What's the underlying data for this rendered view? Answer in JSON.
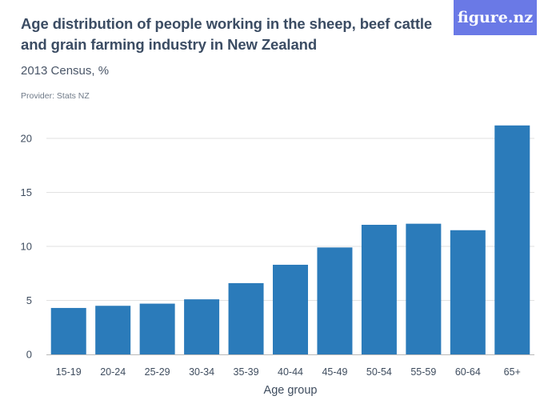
{
  "header": {
    "title": "Age distribution of people working in the sheep, beef cattle and grain farming industry in New Zealand",
    "subtitle": "2013 Census, %",
    "provider": "Provider: Stats NZ",
    "logo_text": "figure.nz"
  },
  "colors": {
    "bar": "#2b7bba",
    "grid": "#e2e2e2",
    "axis": "#b9b9b9",
    "logo_bg": "#6a79e6"
  },
  "chart_data": {
    "type": "bar",
    "title": "Age distribution of people working in the sheep, beef cattle and grain farming industry in New Zealand",
    "subtitle": "2013 Census, %",
    "xlabel": "Age group",
    "ylabel": "",
    "categories": [
      "15-19",
      "20-24",
      "25-29",
      "30-34",
      "35-39",
      "40-44",
      "45-49",
      "50-54",
      "55-59",
      "60-64",
      "65+"
    ],
    "values": [
      4.3,
      4.5,
      4.7,
      5.1,
      6.6,
      8.3,
      9.9,
      12.0,
      12.1,
      11.5,
      21.2
    ],
    "ylim": [
      0,
      22
    ],
    "yticks": [
      0,
      5,
      10,
      15,
      20
    ],
    "grid": true,
    "legend": "none"
  }
}
